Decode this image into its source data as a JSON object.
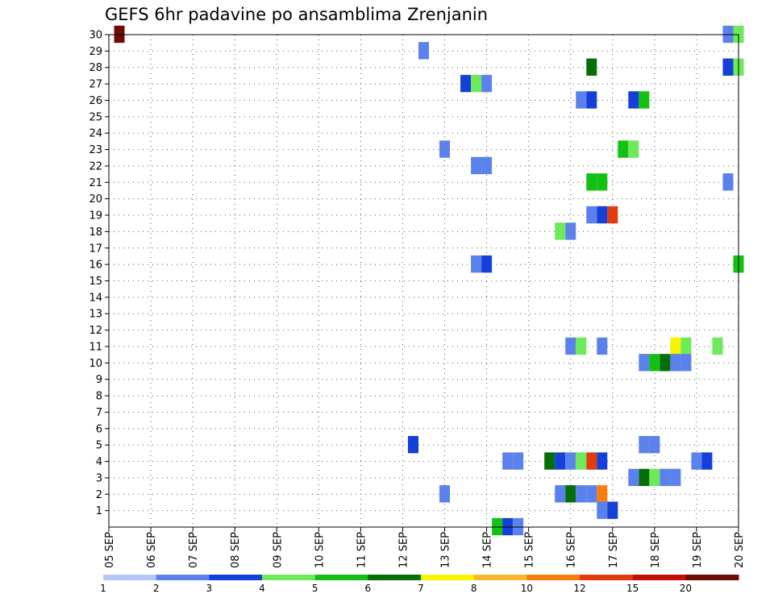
{
  "chart_data": {
    "type": "heatmap",
    "title": "GEFS 6hr padavine po ansamblima Zrenjanin",
    "xlabel": "",
    "ylabel": "",
    "x_ticks": [
      "05 SEP",
      "06 SEP",
      "07 SEP",
      "08 SEP",
      "09 SEP",
      "10 SEP",
      "11 SEP",
      "12 SEP",
      "13 SEP",
      "14 SEP",
      "15 SEP",
      "16 SEP",
      "17 SEP",
      "18 SEP",
      "19 SEP",
      "20 SEP"
    ],
    "xlim": [
      0,
      60
    ],
    "x_unit": "6-hour steps from 05 SEP 00Z",
    "y_ticks": [
      1,
      2,
      3,
      4,
      5,
      6,
      7,
      8,
      9,
      10,
      11,
      12,
      13,
      14,
      15,
      16,
      17,
      18,
      19,
      20,
      21,
      22,
      23,
      24,
      25,
      26,
      27,
      28,
      29,
      30
    ],
    "ylim": [
      0,
      30
    ],
    "grid": true,
    "colorbar": {
      "labels": [
        "1",
        "2",
        "3",
        "4",
        "5",
        "6",
        "7",
        "8",
        "10",
        "12",
        "15",
        "20"
      ],
      "colors": [
        "#b4c6f5",
        "#5b82ec",
        "#1440d8",
        "#6cea5a",
        "#13c013",
        "#066e06",
        "#f8f400",
        "#fbb630",
        "#fa7d0c",
        "#e03c0c",
        "#bf1108",
        "#6e0a08"
      ]
    },
    "cells": [
      [
        1,
        30,
        11
      ],
      [
        59,
        30,
        1
      ],
      [
        60,
        30,
        3
      ],
      [
        30,
        29,
        1
      ],
      [
        46,
        28,
        5
      ],
      [
        59,
        28,
        2
      ],
      [
        60,
        28,
        3
      ],
      [
        34,
        27,
        2
      ],
      [
        35,
        27,
        3
      ],
      [
        36,
        27,
        1
      ],
      [
        45,
        26,
        1
      ],
      [
        46,
        26,
        2
      ],
      [
        50,
        26,
        2
      ],
      [
        51,
        26,
        4
      ],
      [
        32,
        23,
        1
      ],
      [
        49,
        23,
        4
      ],
      [
        50,
        23,
        3
      ],
      [
        35,
        22,
        1
      ],
      [
        36,
        22,
        1
      ],
      [
        46,
        21,
        4
      ],
      [
        47,
        21,
        4
      ],
      [
        59,
        21,
        1
      ],
      [
        46,
        19,
        1
      ],
      [
        47,
        19,
        2
      ],
      [
        48,
        19,
        9
      ],
      [
        43,
        18,
        3
      ],
      [
        44,
        18,
        1
      ],
      [
        35,
        16,
        1
      ],
      [
        36,
        16,
        2
      ],
      [
        60,
        16,
        4
      ],
      [
        44,
        11,
        1
      ],
      [
        45,
        11,
        3
      ],
      [
        47,
        11,
        1
      ],
      [
        54,
        11,
        6
      ],
      [
        55,
        11,
        3
      ],
      [
        58,
        11,
        3
      ],
      [
        51,
        10,
        1
      ],
      [
        52,
        10,
        4
      ],
      [
        53,
        10,
        5
      ],
      [
        54,
        10,
        1
      ],
      [
        55,
        10,
        1
      ],
      [
        29,
        5,
        2
      ],
      [
        51,
        5,
        1
      ],
      [
        52,
        5,
        1
      ],
      [
        38,
        4,
        1
      ],
      [
        39,
        4,
        1
      ],
      [
        42,
        4,
        5
      ],
      [
        43,
        4,
        2
      ],
      [
        44,
        4,
        1
      ],
      [
        45,
        4,
        3
      ],
      [
        46,
        4,
        9
      ],
      [
        47,
        4,
        2
      ],
      [
        56,
        4,
        1
      ],
      [
        57,
        4,
        2
      ],
      [
        50,
        3,
        1
      ],
      [
        51,
        3,
        5
      ],
      [
        52,
        3,
        3
      ],
      [
        53,
        3,
        1
      ],
      [
        54,
        3,
        1
      ],
      [
        32,
        2,
        1
      ],
      [
        43,
        2,
        1
      ],
      [
        44,
        2,
        5
      ],
      [
        45,
        2,
        1
      ],
      [
        46,
        2,
        1
      ],
      [
        47,
        2,
        8
      ],
      [
        47,
        1,
        1
      ],
      [
        48,
        1,
        2
      ],
      [
        37,
        0,
        4
      ],
      [
        38,
        0,
        2
      ],
      [
        39,
        0,
        1
      ]
    ]
  }
}
